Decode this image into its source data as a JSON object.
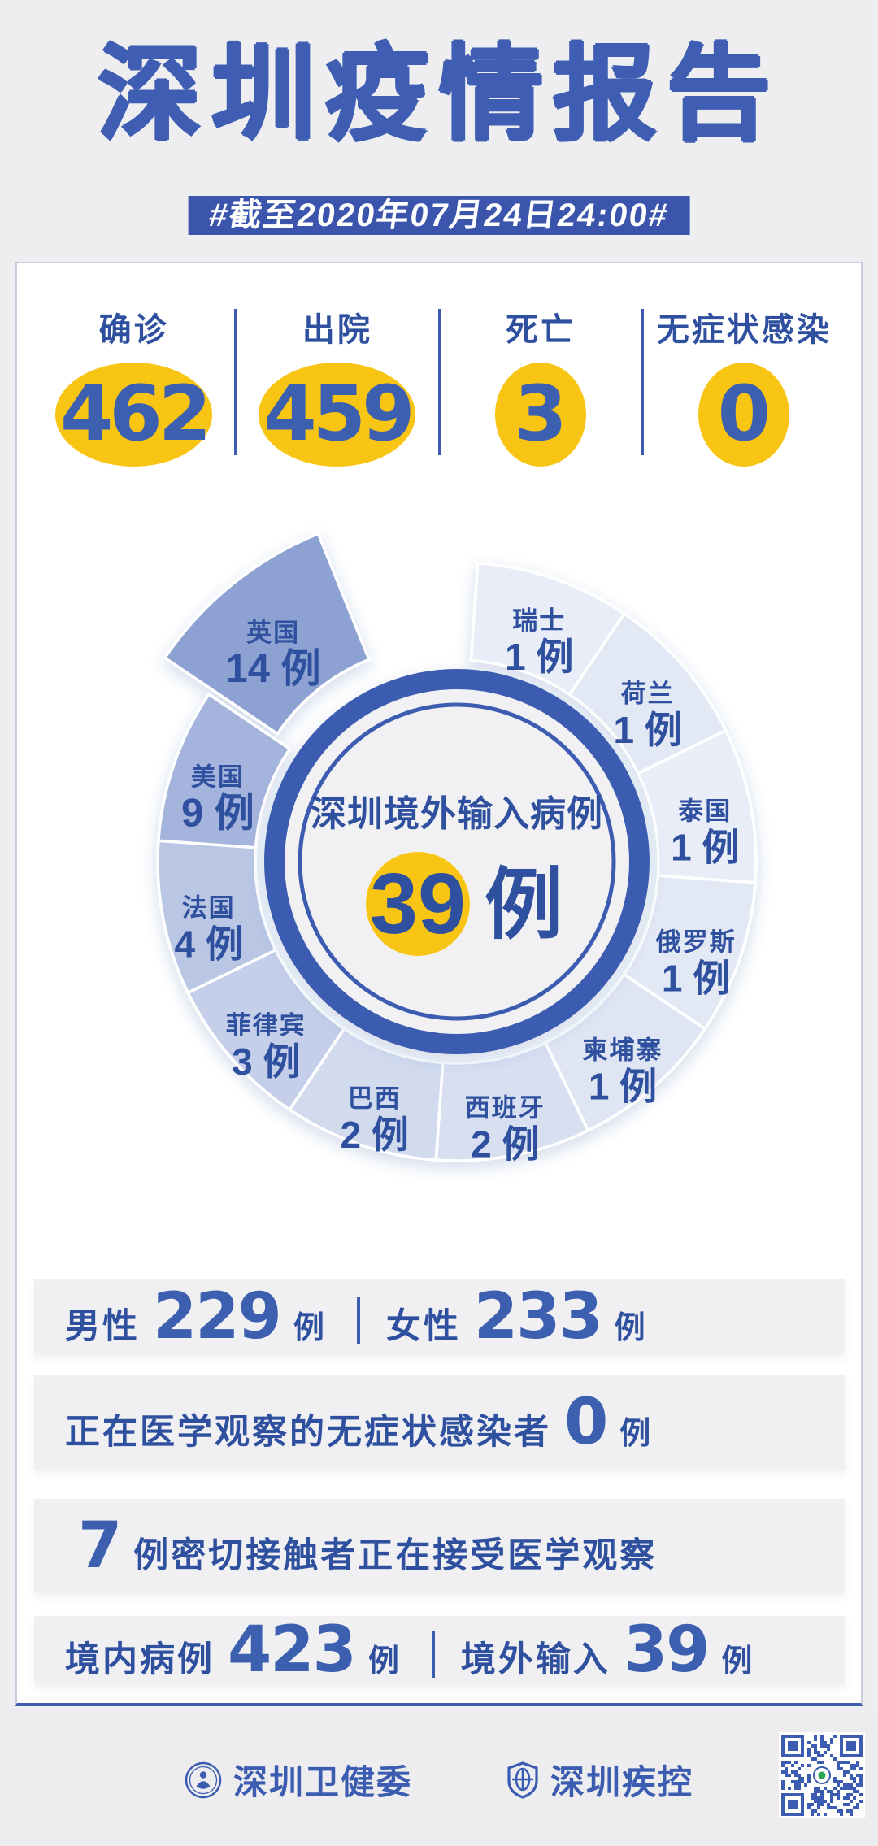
{
  "header": {
    "title": "深圳疫情报告",
    "date_tag": "#截至2020年07月24日24:00#"
  },
  "colors": {
    "accent": "#3b5cb0",
    "deep_blue": "#2e509f",
    "number_blue": "#3c5fb0",
    "yellow": "#f9c515",
    "ring_gray": "#f1f1f3",
    "strip_bg": "#f0f0f2",
    "page_bg": "#eeeef0",
    "qr_green": "#2da44e"
  },
  "summary": {
    "items": [
      {
        "label": "确诊",
        "value": "462"
      },
      {
        "label": "出院",
        "value": "459"
      },
      {
        "label": "死亡",
        "value": "3"
      },
      {
        "label": "无症状感染",
        "value": "0"
      }
    ]
  },
  "chart_data": {
    "type": "pie",
    "title": "深圳境外输入病例",
    "center_title": "深圳境外输入病例",
    "center_value": "39",
    "unit": "例",
    "total": 39,
    "legend": false,
    "layout": {
      "start_angle_deg": 4,
      "slice_angle_deg": 30,
      "clockwise": true,
      "labels": "inside-petals",
      "highlight_slice": "英国"
    },
    "series": [
      {
        "name": "瑞士",
        "value": 1,
        "color": "#e9edf8"
      },
      {
        "name": "荷兰",
        "value": 1,
        "color": "#e3e8f5"
      },
      {
        "name": "泰国",
        "value": 1,
        "color": "#e9edf8"
      },
      {
        "name": "俄罗斯",
        "value": 1,
        "color": "#e3e8f5"
      },
      {
        "name": "柬埔寨",
        "value": 1,
        "color": "#dfe5f3"
      },
      {
        "name": "西班牙",
        "value": 2,
        "color": "#d8dff1"
      },
      {
        "name": "巴西",
        "value": 2,
        "color": "#d2dbee"
      },
      {
        "name": "菲律宾",
        "value": 3,
        "color": "#c5cfe9"
      },
      {
        "name": "法国",
        "value": 4,
        "color": "#b9c6e4"
      },
      {
        "name": "美国",
        "value": 9,
        "color": "#a5b4dc"
      },
      {
        "name": "英国",
        "value": 14,
        "color": "#8da2d2",
        "highlight": true
      }
    ]
  },
  "detail_rows": [
    {
      "segments": [
        {
          "k": "label",
          "v": "男性"
        },
        {
          "k": "num",
          "v": "229"
        },
        {
          "k": "unit",
          "v": "例"
        },
        {
          "k": "div"
        },
        {
          "k": "label",
          "v": "女性"
        },
        {
          "k": "num",
          "v": "233"
        },
        {
          "k": "unit",
          "v": "例"
        }
      ]
    },
    {
      "segments": [
        {
          "k": "label",
          "v": "正在医学观察的无症状感染者"
        },
        {
          "k": "num",
          "v": "0"
        },
        {
          "k": "unit",
          "v": "例"
        }
      ]
    },
    {
      "segments": [
        {
          "k": "num",
          "v": "7"
        },
        {
          "k": "label",
          "v": "例密切接触者正在接受医学观察"
        }
      ]
    },
    {
      "segments": [
        {
          "k": "label",
          "v": "境内病例"
        },
        {
          "k": "num",
          "v": "423"
        },
        {
          "k": "unit",
          "v": "例"
        },
        {
          "k": "div"
        },
        {
          "k": "label",
          "v": "境外输入"
        },
        {
          "k": "num",
          "v": "39"
        },
        {
          "k": "unit",
          "v": "例"
        }
      ]
    }
  ],
  "footer": {
    "orgs": [
      {
        "name": "深圳卫健委"
      },
      {
        "name": "深圳疾控"
      }
    ]
  }
}
